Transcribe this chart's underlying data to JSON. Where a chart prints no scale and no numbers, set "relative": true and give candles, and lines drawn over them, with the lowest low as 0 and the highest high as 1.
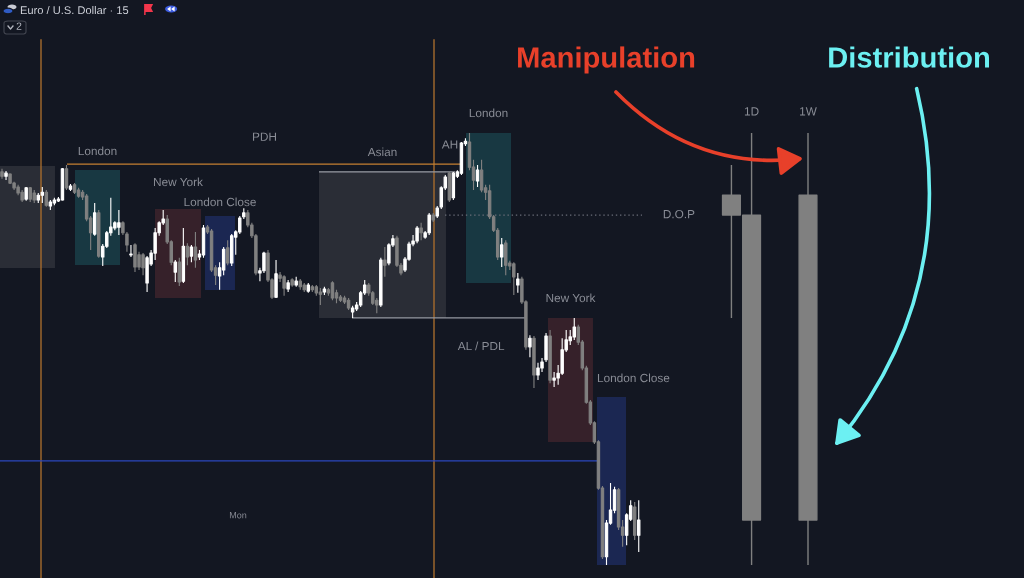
{
  "chart_data": {
    "type": "candlestick",
    "title": "Euro / U.S. Dollar · 15",
    "relative": true,
    "tick_labels": "x",
    "categories": [
      null,
      null,
      null,
      null,
      null,
      null,
      null,
      null,
      null,
      null,
      null,
      null,
      null,
      null,
      null,
      null,
      null,
      null,
      null,
      null,
      null,
      null,
      null,
      null,
      null,
      null,
      null,
      null,
      null,
      null,
      null,
      null,
      null,
      null,
      null,
      null,
      null,
      null,
      null,
      null,
      null,
      null,
      null,
      null,
      null,
      null,
      null,
      null,
      null,
      null,
      null,
      null,
      null,
      null,
      null,
      null,
      null,
      null,
      null,
      null,
      null,
      null,
      null,
      null,
      null,
      null,
      null,
      null,
      null,
      null,
      null,
      null,
      null,
      null,
      null,
      null,
      null,
      null,
      null,
      null,
      null,
      null,
      null,
      null,
      null,
      null,
      null,
      null,
      null,
      null,
      null,
      null,
      null,
      null,
      null,
      null,
      null,
      null,
      null,
      null,
      null,
      null,
      null,
      null,
      null,
      null,
      null,
      null,
      null,
      null,
      null,
      null,
      null,
      null,
      null,
      null,
      null,
      null,
      null,
      null,
      null,
      null,
      null,
      null,
      null,
      null,
      null,
      null,
      null,
      null,
      null,
      null,
      null,
      null,
      null,
      null,
      null,
      null,
      null,
      null,
      null,
      null,
      null,
      null,
      null,
      null,
      null,
      null,
      null,
      null,
      null,
      null,
      null,
      null,
      null,
      null,
      null,
      null,
      null,
      null,
      null,
      null,
      null,
      null,
      null,
      null,
      null,
      null,
      null,
      null,
      null,
      null,
      null,
      null,
      null,
      null,
      null,
      null,
      null,
      null,
      null,
      null,
      null,
      null,
      null,
      null,
      "1D",
      null,
      null,
      null,
      null,
      null,
      null,
      null,
      null,
      null,
      null,
      null,
      null,
      null,
      "1W"
    ],
    "ohlc": [
      [
        0.91,
        0.917,
        0.894,
        0.9
      ],
      [
        0.9,
        0.912,
        0.891,
        0.907
      ],
      [
        0.905,
        0.907,
        0.882,
        0.884
      ],
      [
        0.884,
        0.887,
        0.868,
        0.873
      ],
      [
        0.875,
        0.88,
        0.856,
        0.861
      ],
      [
        0.863,
        0.868,
        0.84,
        0.845
      ],
      [
        0.847,
        0.875,
        0.843,
        0.873
      ],
      [
        0.873,
        0.875,
        0.84,
        0.847
      ],
      [
        0.861,
        0.868,
        0.838,
        0.845
      ],
      [
        0.845,
        0.861,
        0.838,
        0.856
      ],
      [
        0.856,
        0.875,
        0.838,
        0.863
      ],
      [
        0.863,
        0.868,
        0.829,
        0.833
      ],
      [
        0.831,
        0.845,
        0.822,
        0.84
      ],
      [
        0.838,
        0.85,
        0.833,
        0.845
      ],
      [
        0.843,
        0.852,
        0.84,
        0.847
      ],
      [
        0.845,
        0.919,
        0.843,
        0.917
      ],
      [
        0.917,
        0.926,
        0.868,
        0.873
      ],
      [
        0.87,
        0.882,
        0.866,
        0.877
      ],
      [
        0.88,
        0.884,
        0.859,
        0.863
      ],
      [
        0.868,
        0.873,
        0.85,
        0.854
      ],
      [
        0.863,
        0.868,
        0.845,
        0.852
      ],
      [
        0.854,
        0.859,
        0.796,
        0.801
      ],
      [
        0.803,
        0.808,
        0.729,
        0.769
      ],
      [
        0.766,
        0.838,
        0.762,
        0.815
      ],
      [
        0.815,
        0.822,
        0.711,
        0.715
      ],
      [
        0.713,
        0.743,
        0.692,
        0.738
      ],
      [
        0.738,
        0.773,
        0.734,
        0.769
      ],
      [
        0.769,
        0.85,
        0.762,
        0.782
      ],
      [
        0.78,
        0.796,
        0.775,
        0.792
      ],
      [
        0.782,
        0.822,
        0.764,
        0.792
      ],
      [
        0.792,
        0.796,
        0.764,
        0.769
      ],
      [
        0.766,
        0.771,
        0.725,
        0.741
      ],
      [
        0.718,
        0.741,
        0.713,
        0.72
      ],
      [
        0.741,
        0.745,
        0.678,
        0.69
      ],
      [
        0.718,
        0.725,
        0.683,
        0.69
      ],
      [
        0.718,
        0.722,
        0.671,
        0.688
      ],
      [
        0.653,
        0.715,
        0.632,
        0.711
      ],
      [
        0.697,
        0.729,
        0.692,
        0.722
      ],
      [
        0.722,
        0.78,
        0.706,
        0.769
      ],
      [
        0.769,
        0.796,
        0.762,
        0.792
      ],
      [
        0.792,
        0.822,
        0.787,
        0.801
      ],
      [
        0.801,
        0.81,
        0.743,
        0.748
      ],
      [
        0.748,
        0.752,
        0.694,
        0.701
      ],
      [
        0.678,
        0.706,
        0.655,
        0.701
      ],
      [
        0.701,
        0.711,
        0.646,
        0.655
      ],
      [
        0.657,
        0.78,
        0.653,
        0.738
      ],
      [
        0.738,
        0.745,
        0.694,
        0.713
      ],
      [
        0.715,
        0.741,
        0.701,
        0.736
      ],
      [
        0.736,
        0.771,
        0.688,
        0.706
      ],
      [
        0.713,
        0.729,
        0.706,
        0.72
      ],
      [
        0.718,
        0.787,
        0.711,
        0.78
      ],
      [
        0.782,
        0.787,
        0.766,
        0.771
      ],
      [
        0.773,
        0.778,
        0.678,
        0.683
      ],
      [
        0.688,
        0.694,
        0.648,
        0.671
      ],
      [
        0.669,
        0.701,
        0.637,
        0.688
      ],
      [
        0.683,
        0.736,
        0.671,
        0.731
      ],
      [
        0.734,
        0.752,
        0.694,
        0.699
      ],
      [
        0.699,
        0.766,
        0.692,
        0.762
      ],
      [
        0.759,
        0.775,
        0.718,
        0.771
      ],
      [
        0.771,
        0.808,
        0.766,
        0.803
      ],
      [
        0.806,
        0.826,
        0.801,
        0.815
      ],
      [
        0.815,
        0.822,
        0.782,
        0.787
      ],
      [
        0.787,
        0.792,
        0.757,
        0.762
      ],
      [
        0.762,
        0.766,
        0.671,
        0.676
      ],
      [
        0.676,
        0.688,
        0.657,
        0.681
      ],
      [
        0.681,
        0.725,
        0.676,
        0.722
      ],
      [
        0.722,
        0.729,
        0.655,
        0.66
      ],
      [
        0.66,
        0.664,
        0.616,
        0.62
      ],
      [
        0.62,
        0.706,
        0.618,
        0.674
      ],
      [
        0.671,
        0.678,
        0.655,
        0.664
      ],
      [
        0.667,
        0.671,
        0.623,
        0.641
      ],
      [
        0.639,
        0.66,
        0.632,
        0.653
      ],
      [
        0.66,
        0.664,
        0.644,
        0.648
      ],
      [
        0.648,
        0.667,
        0.644,
        0.657
      ],
      [
        0.657,
        0.662,
        0.637,
        0.644
      ],
      [
        0.648,
        0.653,
        0.632,
        0.637
      ],
      [
        0.634,
        0.653,
        0.63,
        0.648
      ],
      [
        0.644,
        0.648,
        0.632,
        0.637
      ],
      [
        0.644,
        0.648,
        0.623,
        0.63
      ],
      [
        0.632,
        0.641,
        0.602,
        0.627
      ],
      [
        0.632,
        0.644,
        0.625,
        0.639
      ],
      [
        0.637,
        0.641,
        0.623,
        0.63
      ],
      [
        0.653,
        0.657,
        0.613,
        0.618
      ],
      [
        0.63,
        0.637,
        0.606,
        0.618
      ],
      [
        0.62,
        0.625,
        0.609,
        0.613
      ],
      [
        0.618,
        0.623,
        0.604,
        0.609
      ],
      [
        0.613,
        0.618,
        0.59,
        0.595
      ],
      [
        0.586,
        0.6,
        0.572,
        0.595
      ],
      [
        0.593,
        0.609,
        0.588,
        0.602
      ],
      [
        0.602,
        0.634,
        0.597,
        0.63
      ],
      [
        0.63,
        0.66,
        0.625,
        0.648
      ],
      [
        0.648,
        0.653,
        0.623,
        0.63
      ],
      [
        0.63,
        0.634,
        0.602,
        0.606
      ],
      [
        0.613,
        0.618,
        0.583,
        0.602
      ],
      [
        0.602,
        0.711,
        0.597,
        0.706
      ],
      [
        0.706,
        0.736,
        0.667,
        0.694
      ],
      [
        0.699,
        0.745,
        0.694,
        0.741
      ],
      [
        0.741,
        0.764,
        0.736,
        0.755
      ],
      [
        0.757,
        0.762,
        0.69,
        0.694
      ],
      [
        0.694,
        0.699,
        0.671,
        0.676
      ],
      [
        0.683,
        0.713,
        0.678,
        0.708
      ],
      [
        0.708,
        0.748,
        0.704,
        0.743
      ],
      [
        0.743,
        0.764,
        0.738,
        0.75
      ],
      [
        0.75,
        0.785,
        0.745,
        0.78
      ],
      [
        0.78,
        0.792,
        0.752,
        0.769
      ],
      [
        0.759,
        0.773,
        0.755,
        0.769
      ],
      [
        0.769,
        0.815,
        0.764,
        0.81
      ],
      [
        0.81,
        0.815,
        0.794,
        0.799
      ],
      [
        0.808,
        0.831,
        0.803,
        0.826
      ],
      [
        0.829,
        0.877,
        0.824,
        0.873
      ],
      [
        0.873,
        0.903,
        0.868,
        0.898
      ],
      [
        0.907,
        0.91,
        0.84,
        0.845
      ],
      [
        0.85,
        0.91,
        0.845,
        0.907
      ],
      [
        0.9,
        0.914,
        0.896,
        0.91
      ],
      [
        0.907,
        0.979,
        0.903,
        0.977
      ],
      [
        0.975,
        0.988,
        0.97,
        0.981
      ],
      [
        0.979,
        1.0,
        0.914,
        0.921
      ],
      [
        0.921,
        0.938,
        0.868,
        0.891
      ],
      [
        0.889,
        0.926,
        0.875,
        0.914
      ],
      [
        0.914,
        0.938,
        0.863,
        0.868
      ],
      [
        0.873,
        0.88,
        0.845,
        0.863
      ],
      [
        0.866,
        0.88,
        0.801,
        0.806
      ],
      [
        0.806,
        0.81,
        0.771,
        0.775
      ],
      [
        0.775,
        0.78,
        0.706,
        0.713
      ],
      [
        0.713,
        0.757,
        0.69,
        0.741
      ],
      [
        0.745,
        0.752,
        0.671,
        0.694
      ],
      [
        0.699,
        0.704,
        0.683,
        0.692
      ],
      [
        0.697,
        0.701,
        0.625,
        0.667
      ],
      [
        0.648,
        0.676,
        0.63,
        0.662
      ],
      [
        0.662,
        0.667,
        0.604,
        0.609
      ],
      [
        0.609,
        0.613,
        0.498,
        0.505
      ],
      [
        0.505,
        0.532,
        0.481,
        0.525
      ],
      [
        0.525,
        0.53,
        0.41,
        0.44
      ],
      [
        0.44,
        0.468,
        0.428,
        0.456
      ],
      [
        0.456,
        0.479,
        0.447,
        0.47
      ],
      [
        0.475,
        0.537,
        0.47,
        0.53
      ],
      [
        0.53,
        0.544,
        0.421,
        0.428
      ],
      [
        0.428,
        0.447,
        0.412,
        0.433
      ],
      [
        0.433,
        0.463,
        0.417,
        0.444
      ],
      [
        0.444,
        0.525,
        0.44,
        0.498
      ],
      [
        0.498,
        0.544,
        0.493,
        0.521
      ],
      [
        0.519,
        0.544,
        0.509,
        0.528
      ],
      [
        0.528,
        0.572,
        0.521,
        0.551
      ],
      [
        0.551,
        0.556,
        0.509,
        0.516
      ],
      [
        0.516,
        0.521,
        0.451,
        0.456
      ],
      [
        0.456,
        0.461,
        0.373,
        0.377
      ],
      [
        0.377,
        0.382,
        0.324,
        0.329
      ],
      [
        0.329,
        0.333,
        0.28,
        0.285
      ],
      [
        0.285,
        0.289,
        0.174,
        0.178
      ],
      [
        0.178,
        0.183,
        0.014,
        0.019
      ],
      [
        0.019,
        0.104,
        0.0,
        0.097
      ],
      [
        0.097,
        0.19,
        0.093,
        0.127
      ],
      [
        0.127,
        0.181,
        0.12,
        0.174
      ],
      [
        0.174,
        0.178,
        0.081,
        0.088
      ],
      [
        0.088,
        0.104,
        0.042,
        0.069
      ],
      [
        0.069,
        0.12,
        0.046,
        0.116
      ],
      [
        0.106,
        0.15,
        0.102,
        0.137
      ],
      [
        0.134,
        0.146,
        0.058,
        0.069
      ],
      [
        0.069,
        0.15,
        0.03,
        0.104
      ],
      null,
      null,
      null,
      null,
      null,
      null,
      null,
      null,
      null,
      null,
      null,
      null,
      null,
      null,
      null,
      null,
      null,
      null,
      null,
      null,
      null,
      null,
      [
        0.856,
        0.926,
        0.572,
        0.81
      ],
      null,
      null,
      null,
      null,
      [
        0.81,
        1.0,
        0.0,
        0.104
      ],
      null,
      null,
      null,
      null,
      null,
      null,
      null,
      null,
      null,
      null,
      null,
      null,
      null,
      [
        0.856,
        1.0,
        0.0,
        0.104
      ]
    ],
    "colors": [
      "#808080",
      "#ffffff",
      "#808080",
      "#808080",
      "#808080",
      "#808080",
      "#ffffff",
      "#808080",
      "#808080",
      "#ffffff",
      "#ffffff",
      "#808080",
      "#ffffff",
      "#ffffff",
      "#ffffff",
      "#ffffff",
      "#808080",
      "#ffffff",
      "#808080",
      "#808080",
      "#808080",
      "#808080",
      "#808080",
      "#ffffff",
      "#808080",
      "#ffffff",
      "#ffffff",
      "#ffffff",
      "#ffffff",
      "#ffffff",
      "#808080",
      "#808080",
      "#ffffff",
      "#808080",
      "#808080",
      "#808080",
      "#ffffff",
      "#ffffff",
      "#ffffff",
      "#ffffff",
      "#ffffff",
      "#808080",
      "#808080",
      "#ffffff",
      "#808080",
      "#ffffff",
      "#808080",
      "#ffffff",
      "#808080",
      "#ffffff",
      "#ffffff",
      "#808080",
      "#808080",
      "#808080",
      "#ffffff",
      "#ffffff",
      "#808080",
      "#ffffff",
      "#ffffff",
      "#ffffff",
      "#ffffff",
      "#808080",
      "#808080",
      "#808080",
      "#ffffff",
      "#ffffff",
      "#808080",
      "#808080",
      "#ffffff",
      "#808080",
      "#808080",
      "#ffffff",
      "#808080",
      "#ffffff",
      "#808080",
      "#808080",
      "#ffffff",
      "#808080",
      "#808080",
      "#808080",
      "#ffffff",
      "#808080",
      "#808080",
      "#808080",
      "#808080",
      "#808080",
      "#808080",
      "#ffffff",
      "#ffffff",
      "#ffffff",
      "#ffffff",
      "#808080",
      "#808080",
      "#808080",
      "#ffffff",
      "#808080",
      "#ffffff",
      "#ffffff",
      "#808080",
      "#808080",
      "#ffffff",
      "#ffffff",
      "#ffffff",
      "#ffffff",
      "#808080",
      "#ffffff",
      "#ffffff",
      "#808080",
      "#ffffff",
      "#ffffff",
      "#ffffff",
      "#808080",
      "#ffffff",
      "#ffffff",
      "#ffffff",
      "#ffffff",
      "#808080",
      "#808080",
      "#ffffff",
      "#808080",
      "#808080",
      "#808080",
      "#808080",
      "#808080",
      "#ffffff",
      "#808080",
      "#808080",
      "#808080",
      "#ffffff",
      "#808080",
      "#808080",
      "#ffffff",
      "#808080",
      "#ffffff",
      "#ffffff",
      "#ffffff",
      "#808080",
      "#ffffff",
      "#ffffff",
      "#ffffff",
      "#ffffff",
      "#ffffff",
      "#ffffff",
      "#808080",
      "#808080",
      "#808080",
      "#808080",
      "#808080",
      "#808080",
      "#808080",
      "#ffffff",
      "#ffffff",
      "#ffffff",
      "#808080",
      "#808080",
      "#ffffff",
      "#ffffff",
      "#808080",
      "#ffffff",
      null,
      null,
      null,
      null,
      null,
      null,
      null,
      null,
      null,
      null,
      null,
      null,
      null,
      null,
      null,
      null,
      null,
      null,
      null,
      null,
      null,
      null,
      "#808080",
      null,
      null,
      null,
      null,
      "#808080",
      null,
      null,
      null,
      null,
      null,
      null,
      null,
      null,
      null,
      null,
      null,
      null,
      null,
      "#808080"
    ],
    "ref_lines": [
      {
        "axis": "y",
        "value": 0.928,
        "label": "PDH",
        "color": "#c68032"
      },
      {
        "axis": "y",
        "value": 0.91,
        "label": "AH",
        "color": "#9598a1"
      },
      {
        "axis": "y",
        "value": 0.572,
        "label": "AL / PDL",
        "color": "#9598a1"
      },
      {
        "axis": "y",
        "value": 0.81,
        "label": "D.O.P",
        "color": "#6a6d78",
        "line_style": "dotted"
      },
      {
        "axis": "y",
        "value": 0.241,
        "color": "#2b47bd"
      }
    ],
    "annotations": [
      "London",
      "New York",
      "London Close",
      "Asian",
      "London",
      "New York",
      "London Close",
      "Mon",
      "2",
      "Manipulation",
      "Distribution"
    ]
  }
}
